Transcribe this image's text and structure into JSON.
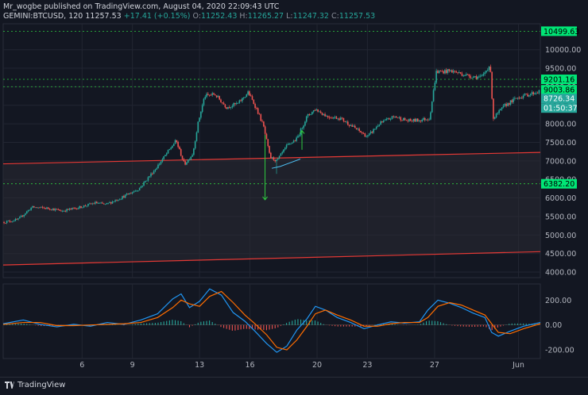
{
  "header": {
    "publisher_line": "Mr_wogbe published on TradingView.com, August 04, 2020 22:09:43 UTC",
    "symbol": "GEMINI:BTCUSD, 120",
    "last": "11257.53",
    "change": "+17.41 (+0.15%)",
    "open_label": "O:",
    "open": "11252.43",
    "high_label": "H:",
    "high": "11265.27",
    "low_label": "L:",
    "low": "11247.32",
    "close_label": "C:",
    "close": "11257.53"
  },
  "footer": {
    "brand": "TradingView"
  },
  "colors": {
    "background": "#131722",
    "up": "#26a69a",
    "down": "#ef5350",
    "channel": "#e53935",
    "level": "#2ecc40",
    "macd": "#2196f3",
    "signal": "#ff6d00",
    "grid": "#222632",
    "axis_text": "#b2b5be"
  },
  "chart_data": [
    {
      "type": "candlestick",
      "axis": "price",
      "ylim": [
        3850,
        10700
      ],
      "y_ticks": [
        4000,
        4500,
        5000,
        5500,
        6000,
        6500,
        7000,
        7500,
        8000,
        8500,
        9000,
        9500,
        10000
      ],
      "y_tick_labels": [
        "4000.00",
        "4500.00",
        "5000.00",
        "5500.00",
        "6000.00",
        "6500.00",
        "7000.00",
        "7500.00",
        "8000.00",
        "8500.00",
        "9000.00",
        "9500.00",
        "10000.00"
      ],
      "x_tick_labels": [
        "6",
        "9",
        "13",
        "16",
        "20",
        "23",
        "27",
        "Jun"
      ],
      "x_tick_pos": [
        6,
        9,
        13,
        16,
        20,
        23,
        27,
        32
      ],
      "x_range": [
        1.3,
        33.3
      ],
      "path": [
        [
          1.4,
          5350
        ],
        [
          2.2,
          5420
        ],
        [
          3.0,
          5750
        ],
        [
          4.0,
          5720
        ],
        [
          4.8,
          5650
        ],
        [
          5.8,
          5740
        ],
        [
          6.8,
          5870
        ],
        [
          7.4,
          5820
        ],
        [
          8.3,
          6000
        ],
        [
          9.4,
          6250
        ],
        [
          10.4,
          6800
        ],
        [
          11.2,
          7300
        ],
        [
          11.6,
          7550
        ],
        [
          12.1,
          6900
        ],
        [
          12.6,
          7200
        ],
        [
          12.9,
          8000
        ],
        [
          13.3,
          8750
        ],
        [
          13.9,
          8800
        ],
        [
          14.6,
          8450
        ],
        [
          15.3,
          8550
        ],
        [
          15.9,
          8850
        ],
        [
          16.4,
          8400
        ],
        [
          16.8,
          7950
        ],
        [
          17.2,
          7100
        ],
        [
          17.6,
          7000
        ],
        [
          18.2,
          7400
        ],
        [
          18.8,
          7600
        ],
        [
          19.4,
          8200
        ],
        [
          19.9,
          8400
        ],
        [
          20.6,
          8200
        ],
        [
          21.4,
          8150
        ],
        [
          22.2,
          7900
        ],
        [
          23.0,
          7650
        ],
        [
          23.7,
          8000
        ],
        [
          24.6,
          8200
        ],
        [
          25.4,
          8080
        ],
        [
          26.1,
          8100
        ],
        [
          26.7,
          8150
        ],
        [
          27.1,
          9400
        ],
        [
          28.0,
          9430
        ],
        [
          29.0,
          9300
        ],
        [
          29.8,
          9250
        ],
        [
          30.3,
          9600
        ],
        [
          30.5,
          8150
        ],
        [
          31.2,
          8500
        ],
        [
          32.0,
          8720
        ],
        [
          33.2,
          8870
        ]
      ],
      "dips": [
        [
          17.6,
          6650
        ],
        [
          30.5,
          8080
        ]
      ],
      "levels": [
        {
          "value": 10499.63,
          "label": "10499.63"
        },
        {
          "value": 9201.16,
          "label": "9201.16"
        },
        {
          "value": 9003.86,
          "label": "9003.86"
        },
        {
          "value": 6382.2,
          "label": "6382.20"
        }
      ],
      "last_price": {
        "value": 8726.34,
        "label": "8726.34",
        "countdown": "01:50:37"
      },
      "channel_upper": [
        [
          1.3,
          6920
        ],
        [
          33.3,
          7230
        ]
      ],
      "channel_lower": [
        [
          1.3,
          4190
        ],
        [
          33.3,
          4550
        ]
      ],
      "annotations": [
        {
          "type": "arrow-down",
          "x": 16.9,
          "from": 7700,
          "to": 5950
        },
        {
          "type": "arrow-up",
          "x": 19.1,
          "from": 7300,
          "to": 7820
        }
      ],
      "ma_curve": [
        [
          17.3,
          6800
        ],
        [
          17.8,
          6850
        ],
        [
          18.4,
          6950
        ],
        [
          19.0,
          7050
        ]
      ]
    },
    {
      "type": "macd",
      "axis": "oscillator",
      "ylim": [
        -270,
        330
      ],
      "y_ticks": [
        -200,
        0,
        200
      ],
      "y_tick_labels": [
        "-200.00",
        "0.00",
        "200.00"
      ],
      "macd": [
        [
          1.3,
          10
        ],
        [
          2.5,
          40
        ],
        [
          3.5,
          5
        ],
        [
          4.5,
          -15
        ],
        [
          5.5,
          5
        ],
        [
          6.5,
          -10
        ],
        [
          7.5,
          20
        ],
        [
          8.5,
          5
        ],
        [
          9.5,
          40
        ],
        [
          10.5,
          90
        ],
        [
          11.4,
          210
        ],
        [
          11.9,
          250
        ],
        [
          12.4,
          140
        ],
        [
          13.0,
          190
        ],
        [
          13.6,
          290
        ],
        [
          14.3,
          240
        ],
        [
          15.0,
          100
        ],
        [
          15.7,
          30
        ],
        [
          16.3,
          -50
        ],
        [
          17.0,
          -150
        ],
        [
          17.6,
          -220
        ],
        [
          18.2,
          -170
        ],
        [
          18.8,
          -40
        ],
        [
          19.4,
          50
        ],
        [
          19.9,
          150
        ],
        [
          20.5,
          120
        ],
        [
          21.2,
          60
        ],
        [
          22.0,
          20
        ],
        [
          22.8,
          -30
        ],
        [
          23.6,
          0
        ],
        [
          24.4,
          25
        ],
        [
          25.2,
          15
        ],
        [
          26.1,
          25
        ],
        [
          26.6,
          120
        ],
        [
          27.2,
          200
        ],
        [
          27.9,
          175
        ],
        [
          28.6,
          140
        ],
        [
          29.3,
          95
        ],
        [
          30.0,
          60
        ],
        [
          30.4,
          -60
        ],
        [
          30.8,
          -90
        ],
        [
          31.5,
          -50
        ],
        [
          32.3,
          -10
        ],
        [
          33.3,
          20
        ]
      ],
      "signal": [
        [
          1.3,
          5
        ],
        [
          2.5,
          20
        ],
        [
          3.5,
          20
        ],
        [
          4.5,
          -5
        ],
        [
          5.5,
          -5
        ],
        [
          6.5,
          0
        ],
        [
          7.5,
          5
        ],
        [
          8.5,
          10
        ],
        [
          9.5,
          20
        ],
        [
          10.5,
          60
        ],
        [
          11.4,
          140
        ],
        [
          11.9,
          200
        ],
        [
          12.4,
          170
        ],
        [
          13.0,
          150
        ],
        [
          13.6,
          230
        ],
        [
          14.3,
          270
        ],
        [
          15.0,
          180
        ],
        [
          15.7,
          80
        ],
        [
          16.3,
          10
        ],
        [
          17.0,
          -80
        ],
        [
          17.6,
          -180
        ],
        [
          18.2,
          -200
        ],
        [
          18.8,
          -120
        ],
        [
          19.4,
          -10
        ],
        [
          19.9,
          90
        ],
        [
          20.5,
          120
        ],
        [
          21.2,
          80
        ],
        [
          22.0,
          40
        ],
        [
          22.8,
          -10
        ],
        [
          23.6,
          -10
        ],
        [
          24.4,
          10
        ],
        [
          25.2,
          20
        ],
        [
          26.1,
          20
        ],
        [
          26.6,
          60
        ],
        [
          27.2,
          150
        ],
        [
          27.9,
          180
        ],
        [
          28.6,
          160
        ],
        [
          29.3,
          120
        ],
        [
          30.0,
          80
        ],
        [
          30.4,
          10
        ],
        [
          30.8,
          -60
        ],
        [
          31.5,
          -70
        ],
        [
          32.3,
          -30
        ],
        [
          33.3,
          10
        ]
      ]
    }
  ]
}
